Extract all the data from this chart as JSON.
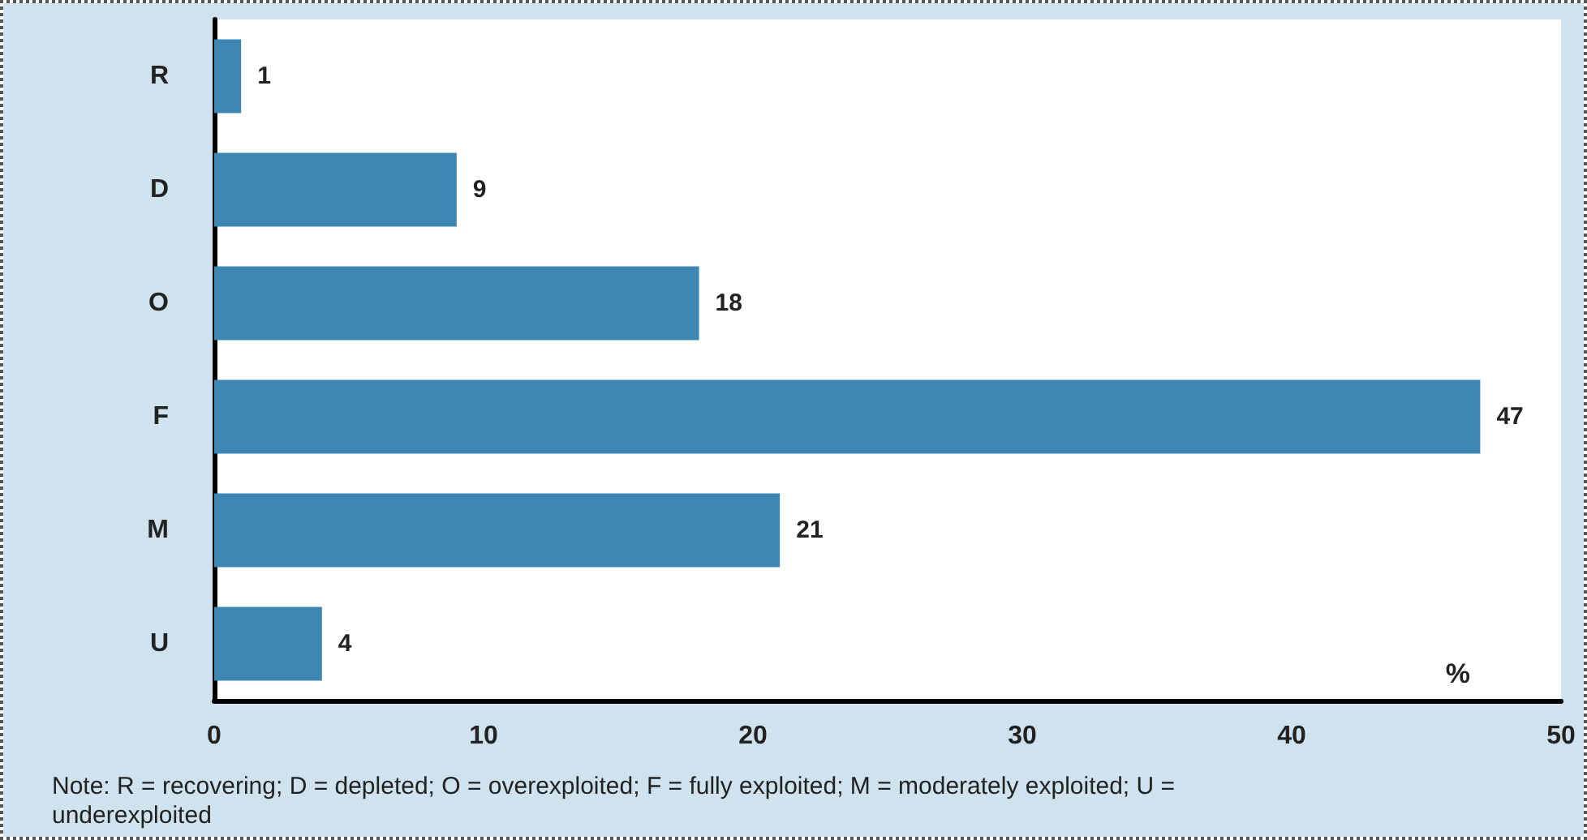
{
  "chart_data": {
    "type": "bar",
    "orientation": "horizontal",
    "categories": [
      "R",
      "D",
      "O",
      "F",
      "M",
      "U"
    ],
    "values": [
      1,
      9,
      18,
      47,
      21,
      4
    ],
    "color": "#3f87b3",
    "xlim": [
      0,
      50
    ],
    "xticks": [
      0,
      10,
      20,
      30,
      40,
      50
    ],
    "xlabel": "%",
    "data_labels": true,
    "grid": false,
    "annotations": [
      "Note: R = recovering; D = depleted; O = overexploited; F = fully exploited; M = moderately exploited; U = underexploited"
    ]
  }
}
